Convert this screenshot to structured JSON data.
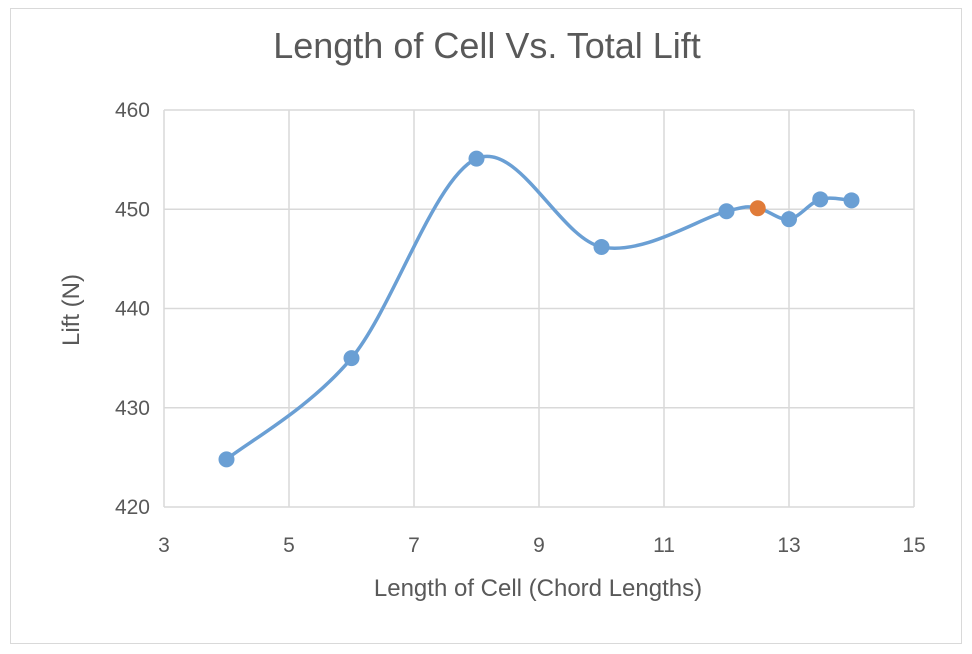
{
  "chart_data": {
    "type": "line",
    "title": "Length of Cell Vs. Total Lift",
    "xlabel": "Length of Cell (Chord Lengths)",
    "ylabel": "Lift (N)",
    "xlim": [
      3,
      15
    ],
    "ylim": [
      420,
      460
    ],
    "xticks": [
      3,
      5,
      7,
      9,
      11,
      13,
      15
    ],
    "yticks": [
      420,
      430,
      440,
      450,
      460
    ],
    "grid": true,
    "smooth": true,
    "series": [
      {
        "name": "Lift",
        "color": "#6a9fd4",
        "points": [
          {
            "x": 4,
            "y": 424.8
          },
          {
            "x": 6,
            "y": 435.0
          },
          {
            "x": 8,
            "y": 455.1
          },
          {
            "x": 10,
            "y": 446.2
          },
          {
            "x": 12,
            "y": 449.8
          },
          {
            "x": 12.5,
            "y": 450.1,
            "color": "#e07b39"
          },
          {
            "x": 13,
            "y": 449.0
          },
          {
            "x": 13.5,
            "y": 451.0
          },
          {
            "x": 14,
            "y": 450.9
          }
        ]
      }
    ]
  }
}
